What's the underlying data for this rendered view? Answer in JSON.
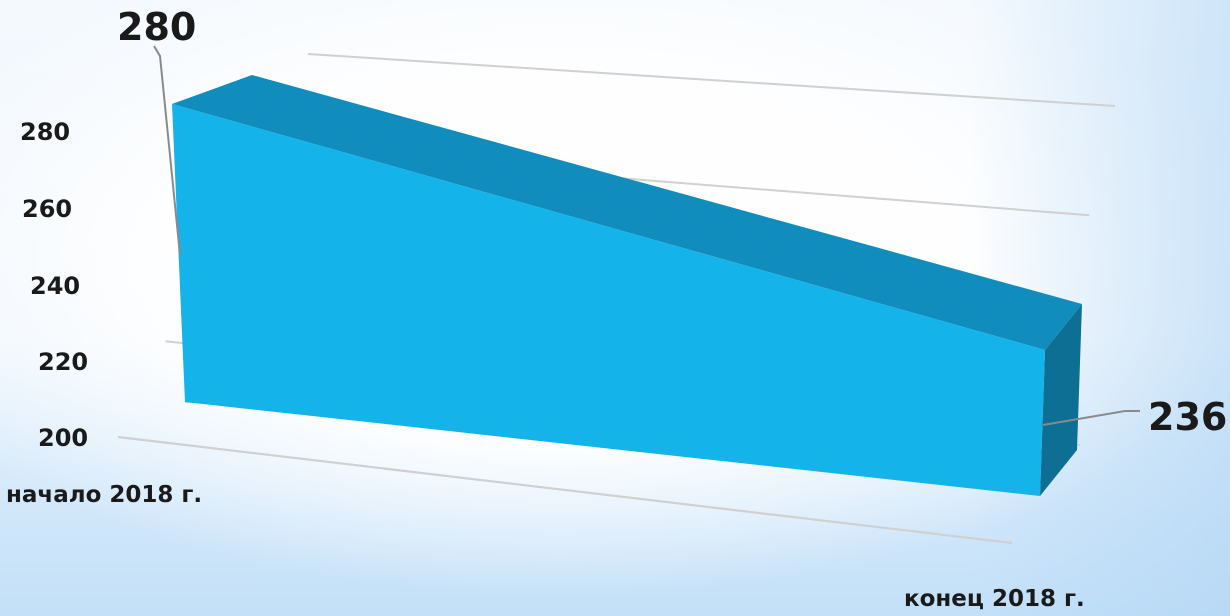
{
  "chart_data": {
    "type": "area",
    "categories": [
      "начало 2018 г.",
      "конец 2018 г."
    ],
    "values": [
      280,
      236
    ],
    "data_labels": [
      "280",
      "236"
    ],
    "ylim": [
      200,
      280
    ],
    "yticks": [
      "200",
      "220",
      "240",
      "260",
      "280"
    ],
    "grid": true,
    "three_d": true,
    "colors": {
      "front": "#14b3ea",
      "top": "#118dbd",
      "side": "#0c6f93",
      "grid": "#d0d0d0",
      "leader": "#8a8a8a"
    }
  }
}
